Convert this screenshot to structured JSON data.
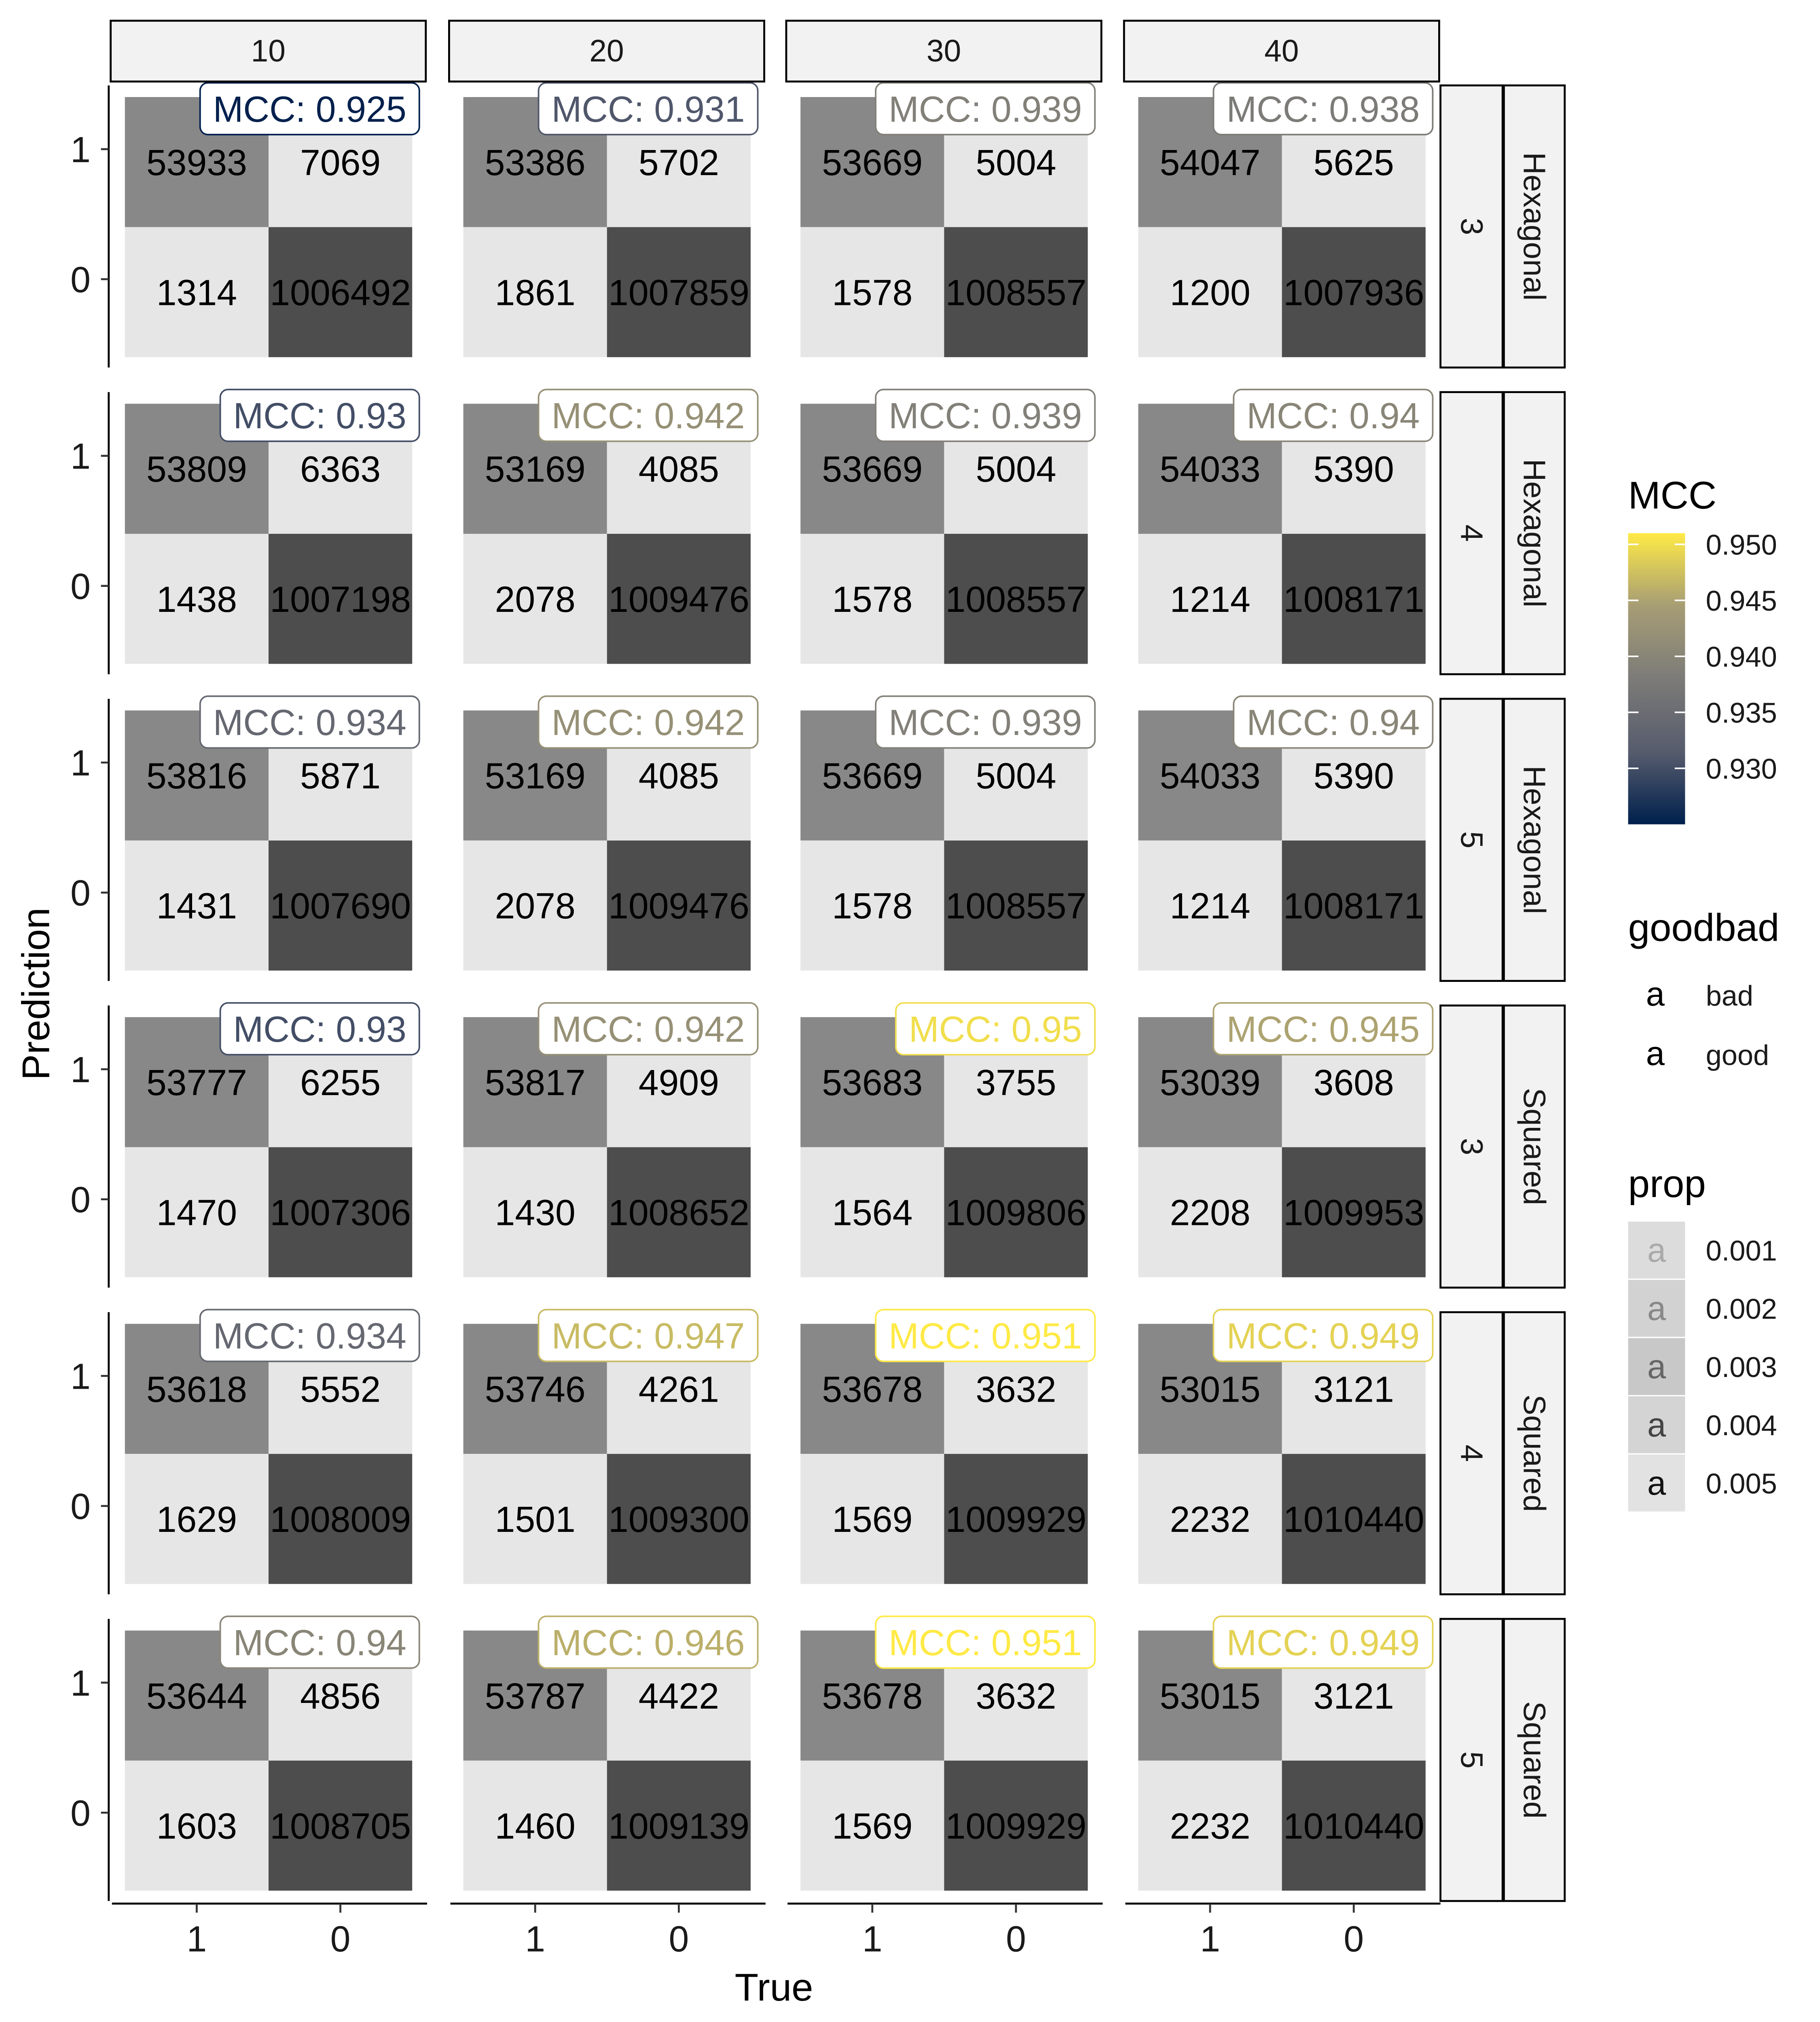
{
  "chart_data": {
    "type": "heatmap",
    "xlabel": "True",
    "ylabel": "Prediction",
    "x_ticks": [
      "1",
      "0"
    ],
    "y_ticks": [
      "1",
      "0"
    ],
    "columns": [
      "10",
      "20",
      "30",
      "40"
    ],
    "rows": [
      {
        "num": "3",
        "shape": "Hexagonal"
      },
      {
        "num": "4",
        "shape": "Hexagonal"
      },
      {
        "num": "5",
        "shape": "Hexagonal"
      },
      {
        "num": "3",
        "shape": "Squared"
      },
      {
        "num": "4",
        "shape": "Squared"
      },
      {
        "num": "5",
        "shape": "Squared"
      }
    ],
    "panels": [
      [
        {
          "mcc": 0.925,
          "mcc_label": "MCC: 0.925",
          "tp": 53933,
          "fp": 7069,
          "fn": 1314,
          "tn": 1006492
        },
        {
          "mcc": 0.931,
          "mcc_label": "MCC: 0.931",
          "tp": 53386,
          "fp": 5702,
          "fn": 1861,
          "tn": 1007859
        },
        {
          "mcc": 0.939,
          "mcc_label": "MCC: 0.939",
          "tp": 53669,
          "fp": 5004,
          "fn": 1578,
          "tn": 1008557
        },
        {
          "mcc": 0.938,
          "mcc_label": "MCC: 0.938",
          "tp": 54047,
          "fp": 5625,
          "fn": 1200,
          "tn": 1007936
        }
      ],
      [
        {
          "mcc": 0.93,
          "mcc_label": "MCC: 0.93",
          "tp": 53809,
          "fp": 6363,
          "fn": 1438,
          "tn": 1007198
        },
        {
          "mcc": 0.942,
          "mcc_label": "MCC: 0.942",
          "tp": 53169,
          "fp": 4085,
          "fn": 2078,
          "tn": 1009476
        },
        {
          "mcc": 0.939,
          "mcc_label": "MCC: 0.939",
          "tp": 53669,
          "fp": 5004,
          "fn": 1578,
          "tn": 1008557
        },
        {
          "mcc": 0.94,
          "mcc_label": "MCC: 0.94",
          "tp": 54033,
          "fp": 5390,
          "fn": 1214,
          "tn": 1008171
        }
      ],
      [
        {
          "mcc": 0.934,
          "mcc_label": "MCC: 0.934",
          "tp": 53816,
          "fp": 5871,
          "fn": 1431,
          "tn": 1007690
        },
        {
          "mcc": 0.942,
          "mcc_label": "MCC: 0.942",
          "tp": 53169,
          "fp": 4085,
          "fn": 2078,
          "tn": 1009476
        },
        {
          "mcc": 0.939,
          "mcc_label": "MCC: 0.939",
          "tp": 53669,
          "fp": 5004,
          "fn": 1578,
          "tn": 1008557
        },
        {
          "mcc": 0.94,
          "mcc_label": "MCC: 0.94",
          "tp": 54033,
          "fp": 5390,
          "fn": 1214,
          "tn": 1008171
        }
      ],
      [
        {
          "mcc": 0.93,
          "mcc_label": "MCC: 0.93",
          "tp": 53777,
          "fp": 6255,
          "fn": 1470,
          "tn": 1007306
        },
        {
          "mcc": 0.942,
          "mcc_label": "MCC: 0.942",
          "tp": 53817,
          "fp": 4909,
          "fn": 1430,
          "tn": 1008652
        },
        {
          "mcc": 0.95,
          "mcc_label": "MCC: 0.95",
          "tp": 53683,
          "fp": 3755,
          "fn": 1564,
          "tn": 1009806
        },
        {
          "mcc": 0.945,
          "mcc_label": "MCC: 0.945",
          "tp": 53039,
          "fp": 3608,
          "fn": 2208,
          "tn": 1009953
        }
      ],
      [
        {
          "mcc": 0.934,
          "mcc_label": "MCC: 0.934",
          "tp": 53618,
          "fp": 5552,
          "fn": 1629,
          "tn": 1008009
        },
        {
          "mcc": 0.947,
          "mcc_label": "MCC: 0.947",
          "tp": 53746,
          "fp": 4261,
          "fn": 1501,
          "tn": 1009300
        },
        {
          "mcc": 0.951,
          "mcc_label": "MCC: 0.951",
          "tp": 53678,
          "fp": 3632,
          "fn": 1569,
          "tn": 1009929
        },
        {
          "mcc": 0.949,
          "mcc_label": "MCC: 0.949",
          "tp": 53015,
          "fp": 3121,
          "fn": 2232,
          "tn": 1010440
        }
      ],
      [
        {
          "mcc": 0.94,
          "mcc_label": "MCC: 0.94",
          "tp": 53644,
          "fp": 4856,
          "fn": 1603,
          "tn": 1008705
        },
        {
          "mcc": 0.946,
          "mcc_label": "MCC: 0.946",
          "tp": 53787,
          "fp": 4422,
          "fn": 1460,
          "tn": 1009139
        },
        {
          "mcc": 0.951,
          "mcc_label": "MCC: 0.951",
          "tp": 53678,
          "fp": 3632,
          "fn": 1569,
          "tn": 1009929
        },
        {
          "mcc": 0.949,
          "mcc_label": "MCC: 0.949",
          "tp": 53015,
          "fp": 3121,
          "fn": 2232,
          "tn": 1010440
        }
      ]
    ],
    "cell_fills": {
      "tp": "#888888",
      "fp": "#e6e6e6",
      "fn": "#e6e6e6",
      "tn": "#4d4d4d"
    },
    "legend_mcc": {
      "title": "MCC",
      "ticks": [
        "0.950",
        "0.945",
        "0.940",
        "0.935",
        "0.930"
      ],
      "tick_values": [
        0.95,
        0.945,
        0.94,
        0.935,
        0.93
      ],
      "range": [
        0.925,
        0.951
      ],
      "colors": [
        "#00204d",
        "#575c6d",
        "#7c7b78",
        "#a69d75",
        "#ffea46"
      ]
    },
    "legend_goodbad": {
      "title": "goodbad",
      "key_glyph": "a",
      "items": [
        "bad",
        "good"
      ]
    },
    "legend_prop": {
      "title": "prop",
      "key_glyph": "a",
      "items": [
        "0.001",
        "0.002",
        "0.003",
        "0.004",
        "0.005"
      ],
      "key_fills": [
        "#dcdcdc",
        "#d2d2d2",
        "#c8c8c8",
        "#d4d4d4",
        "#e2e2e2"
      ],
      "key_glyph_colors": [
        "#aaaaaa",
        "#888888",
        "#666666",
        "#444444",
        "#111111"
      ]
    },
    "legend_position": "right"
  }
}
